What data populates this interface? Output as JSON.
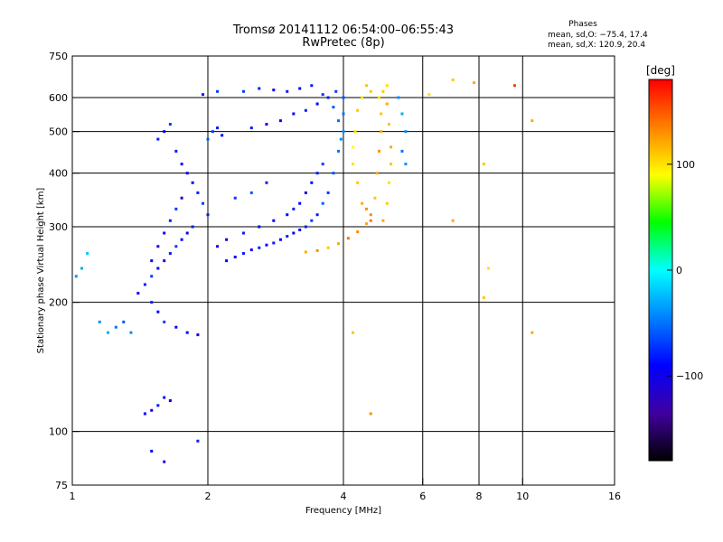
{
  "chart_data": {
    "type": "scatter",
    "title": "Tromsø 20141112 06:54:00–06:55:43",
    "subtitle": "RwPretec (8p)",
    "xlabel": "Frequency [MHz]",
    "ylabel": "Stationary phase Virtual Height [km]",
    "xscale": "log",
    "yscale": "log",
    "xlim": [
      1,
      16
    ],
    "ylim": [
      75,
      750
    ],
    "xticks": [
      1,
      2,
      4,
      6,
      8,
      10,
      16
    ],
    "xtick_labels": [
      "1",
      "2",
      "4",
      "6",
      "8",
      "10",
      "16"
    ],
    "x_gridlines": [
      2,
      4,
      6,
      8,
      10
    ],
    "yticks": [
      75,
      100,
      200,
      300,
      400,
      500,
      600,
      750
    ],
    "ytick_labels": [
      "75",
      "100",
      "200",
      "300",
      "400",
      "500",
      "600",
      "750"
    ],
    "y_gridlines": [
      100,
      200,
      300,
      400,
      500,
      600
    ],
    "grid": true,
    "stats": {
      "heading": "Phases",
      "o_line": "mean, sd,O: −75.4, 17.4",
      "x_line": "mean, sd,X: 120.9, 20.4"
    },
    "colorbar": {
      "label": "[deg]",
      "range": [
        -180,
        180
      ],
      "ticks": [
        100,
        0,
        -100
      ],
      "tick_labels": [
        "100",
        "0",
        "−100"
      ],
      "colors": [
        "#ff0000",
        "#ff8000",
        "#ffff00",
        "#00ff00",
        "#00ffff",
        "#0080ff",
        "#0000ff",
        "#4000a0",
        "#000000"
      ]
    },
    "series": [
      {
        "description": "O-mode traces (mean phase ≈ −75°, blue/cyan)",
        "points": [
          [
            1.02,
            230,
            -40
          ],
          [
            1.05,
            240,
            -30
          ],
          [
            1.08,
            260,
            -20
          ],
          [
            1.15,
            180,
            -40
          ],
          [
            1.2,
            170,
            -30
          ],
          [
            1.25,
            175,
            -50
          ],
          [
            1.3,
            180,
            -60
          ],
          [
            1.35,
            170,
            -40
          ],
          [
            1.4,
            210,
            -90
          ],
          [
            1.45,
            220,
            -80
          ],
          [
            1.5,
            230,
            -70
          ],
          [
            1.55,
            240,
            -90
          ],
          [
            1.6,
            250,
            -100
          ],
          [
            1.65,
            260,
            -80
          ],
          [
            1.7,
            270,
            -70
          ],
          [
            1.75,
            280,
            -90
          ],
          [
            1.8,
            290,
            -100
          ],
          [
            1.85,
            300,
            -80
          ],
          [
            1.5,
            250,
            -100
          ],
          [
            1.55,
            270,
            -110
          ],
          [
            1.6,
            290,
            -90
          ],
          [
            1.65,
            310,
            -80
          ],
          [
            1.7,
            330,
            -70
          ],
          [
            1.75,
            350,
            -100
          ],
          [
            1.5,
            200,
            -80
          ],
          [
            1.55,
            190,
            -90
          ],
          [
            1.6,
            180,
            -70
          ],
          [
            1.7,
            175,
            -100
          ],
          [
            1.8,
            170,
            -90
          ],
          [
            1.9,
            168,
            -100
          ],
          [
            1.55,
            480,
            -80
          ],
          [
            1.6,
            500,
            -90
          ],
          [
            1.65,
            520,
            -70
          ],
          [
            1.7,
            450,
            -80
          ],
          [
            1.75,
            420,
            -90
          ],
          [
            1.8,
            400,
            -100
          ],
          [
            1.85,
            380,
            -90
          ],
          [
            1.9,
            360,
            -80
          ],
          [
            1.95,
            340,
            -70
          ],
          [
            2.0,
            320,
            -80
          ],
          [
            1.45,
            110,
            -90
          ],
          [
            1.5,
            112,
            -100
          ],
          [
            1.55,
            115,
            -80
          ],
          [
            1.6,
            120,
            -90
          ],
          [
            1.65,
            118,
            -100
          ],
          [
            1.5,
            90,
            -90
          ],
          [
            1.6,
            85,
            -100
          ],
          [
            1.9,
            95,
            -80
          ],
          [
            2.0,
            480,
            -60
          ],
          [
            2.05,
            500,
            -70
          ],
          [
            2.1,
            510,
            -80
          ],
          [
            2.15,
            490,
            -90
          ],
          [
            1.95,
            610,
            -80
          ],
          [
            2.1,
            620,
            -70
          ],
          [
            2.2,
            250,
            -90
          ],
          [
            2.3,
            255,
            -100
          ],
          [
            2.4,
            260,
            -80
          ],
          [
            2.5,
            265,
            -90
          ],
          [
            2.6,
            268,
            -80
          ],
          [
            2.7,
            272,
            -90
          ],
          [
            2.8,
            275,
            -80
          ],
          [
            2.9,
            280,
            -90
          ],
          [
            3.0,
            285,
            -80
          ],
          [
            3.1,
            290,
            -90
          ],
          [
            3.2,
            295,
            -100
          ],
          [
            3.3,
            300,
            -80
          ],
          [
            3.4,
            310,
            -70
          ],
          [
            3.5,
            320,
            -80
          ],
          [
            3.6,
            340,
            -60
          ],
          [
            3.7,
            360,
            -70
          ],
          [
            3.8,
            400,
            -60
          ],
          [
            3.9,
            450,
            -50
          ],
          [
            4.0,
            500,
            -40
          ],
          [
            4.0,
            550,
            -50
          ],
          [
            4.0,
            600,
            -60
          ],
          [
            3.85,
            620,
            -70
          ],
          [
            3.7,
            600,
            -80
          ],
          [
            3.5,
            580,
            -90
          ],
          [
            3.3,
            560,
            -80
          ],
          [
            3.1,
            550,
            -90
          ],
          [
            2.9,
            530,
            -100
          ],
          [
            2.7,
            520,
            -90
          ],
          [
            2.5,
            510,
            -80
          ],
          [
            2.4,
            620,
            -70
          ],
          [
            2.6,
            630,
            -80
          ],
          [
            2.8,
            625,
            -90
          ],
          [
            3.0,
            620,
            -80
          ],
          [
            3.2,
            630,
            -90
          ],
          [
            3.4,
            640,
            -80
          ],
          [
            3.6,
            610,
            -70
          ],
          [
            3.8,
            570,
            -60
          ],
          [
            3.9,
            530,
            -50
          ],
          [
            3.95,
            480,
            -40
          ],
          [
            3.6,
            420,
            -70
          ],
          [
            3.5,
            400,
            -80
          ],
          [
            3.4,
            380,
            -90
          ],
          [
            3.3,
            360,
            -100
          ],
          [
            3.2,
            340,
            -90
          ],
          [
            3.1,
            330,
            -80
          ],
          [
            3.0,
            320,
            -90
          ],
          [
            2.8,
            310,
            -100
          ],
          [
            2.6,
            300,
            -90
          ],
          [
            2.4,
            290,
            -80
          ],
          [
            2.3,
            350,
            -70
          ],
          [
            2.5,
            360,
            -60
          ],
          [
            2.7,
            380,
            -80
          ],
          [
            2.2,
            280,
            -90
          ],
          [
            2.1,
            270,
            -100
          ],
          [
            5.3,
            600,
            -40
          ],
          [
            5.4,
            550,
            -30
          ],
          [
            5.5,
            500,
            -40
          ],
          [
            5.4,
            450,
            -50
          ],
          [
            5.5,
            420,
            -40
          ]
        ]
      },
      {
        "description": "X-mode traces (mean phase ≈ 121°, orange/yellow)",
        "points": [
          [
            3.3,
            262,
            120
          ],
          [
            3.5,
            264,
            130
          ],
          [
            3.7,
            268,
            110
          ],
          [
            3.9,
            274,
            120
          ],
          [
            4.1,
            282,
            140
          ],
          [
            4.3,
            292,
            130
          ],
          [
            4.5,
            305,
            120
          ],
          [
            4.6,
            320,
            130
          ],
          [
            4.7,
            350,
            110
          ],
          [
            4.75,
            400,
            120
          ],
          [
            4.8,
            450,
            130
          ],
          [
            4.85,
            500,
            120
          ],
          [
            4.85,
            550,
            110
          ],
          [
            4.8,
            600,
            100
          ],
          [
            4.6,
            620,
            110
          ],
          [
            4.4,
            600,
            100
          ],
          [
            4.3,
            560,
            110
          ],
          [
            4.25,
            500,
            100
          ],
          [
            4.2,
            460,
            90
          ],
          [
            4.2,
            420,
            100
          ],
          [
            4.3,
            380,
            110
          ],
          [
            4.4,
            340,
            120
          ],
          [
            4.5,
            330,
            130
          ],
          [
            4.6,
            310,
            140
          ],
          [
            4.9,
            620,
            110
          ],
          [
            5.0,
            640,
            100
          ],
          [
            4.5,
            640,
            110
          ],
          [
            5.0,
            580,
            120
          ],
          [
            5.05,
            520,
            110
          ],
          [
            5.1,
            460,
            120
          ],
          [
            5.1,
            420,
            110
          ],
          [
            5.05,
            380,
            100
          ],
          [
            5.0,
            340,
            110
          ],
          [
            4.9,
            310,
            120
          ],
          [
            7.0,
            660,
            110
          ],
          [
            7.8,
            650,
            120
          ],
          [
            8.2,
            420,
            110
          ],
          [
            8.4,
            240,
            100
          ],
          [
            8.2,
            205,
            110
          ],
          [
            9.6,
            640,
            160
          ],
          [
            10.5,
            530,
            120
          ],
          [
            10.5,
            170,
            120
          ],
          [
            4.6,
            110,
            130
          ],
          [
            4.2,
            170,
            110
          ],
          [
            7.0,
            310,
            120
          ],
          [
            6.2,
            610,
            100
          ]
        ]
      }
    ]
  }
}
